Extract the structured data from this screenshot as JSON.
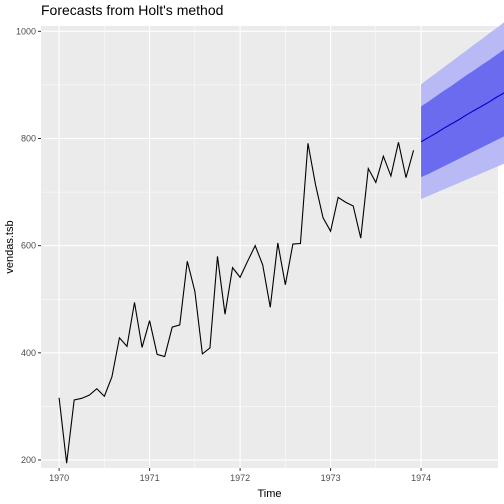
{
  "chart_data": {
    "type": "line",
    "title": "Forecasts from Holt's method",
    "xlabel": "Time",
    "ylabel": "vendas.tsb",
    "xlim": [
      1969.8,
      1974.85
    ],
    "ylim": [
      185,
      1010
    ],
    "x_ticks": [
      1970,
      1971,
      1972,
      1973,
      1974
    ],
    "y_ticks": [
      200,
      400,
      600,
      800,
      1000
    ],
    "grid": true,
    "series": [
      {
        "role": "observed",
        "color": "#000000",
        "start": 1970,
        "frequency": 12,
        "values": [
          316,
          194,
          312,
          315,
          321,
          333,
          319,
          355,
          428,
          412,
          494,
          410,
          460,
          397,
          393,
          448,
          452,
          571,
          515,
          398,
          409,
          580,
          472,
          559,
          541,
          571,
          600,
          564,
          485,
          605,
          527,
          603,
          604,
          791,
          714,
          652,
          627,
          690,
          681,
          674,
          614,
          744,
          718,
          767,
          730,
          793,
          727,
          778
        ]
      },
      {
        "role": "forecast",
        "color": "#0000cc",
        "start": 1974,
        "frequency": 12,
        "point": [
          794,
          802,
          810,
          819,
          827,
          835,
          844,
          852,
          860,
          868,
          877,
          885,
          893
        ],
        "lo80": [
          728,
          734,
          741,
          748,
          755,
          762,
          769,
          776,
          783,
          790,
          797,
          804,
          811
        ],
        "hi80": [
          860,
          869,
          879,
          889,
          898,
          908,
          918,
          927,
          937,
          946,
          956,
          966,
          975
        ],
        "lo95": [
          687,
          693,
          699,
          705,
          711,
          717,
          723,
          729,
          735,
          741,
          747,
          753,
          759
        ],
        "hi95": [
          901,
          912,
          922,
          933,
          943,
          954,
          964,
          975,
          985,
          996,
          1006,
          1017,
          1027
        ],
        "band80_color": "#6b6bf0",
        "band95_color": "#b9b9f5"
      }
    ]
  },
  "colors": {
    "panel_bg": "#ebebeb",
    "grid_major": "#ffffff",
    "tick_mark": "#333333"
  }
}
